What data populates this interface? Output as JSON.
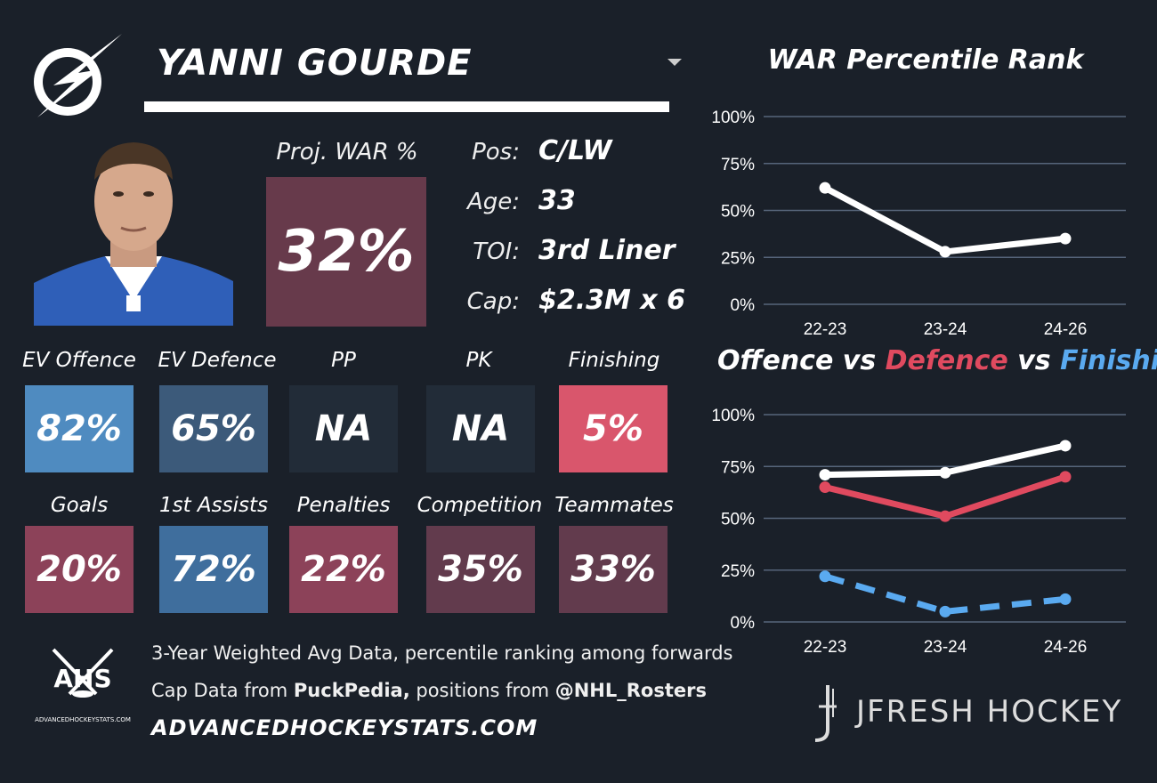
{
  "player": {
    "name": "YANNI GOURDE",
    "proj_war_label": "Proj. WAR %",
    "proj_war_value": "32%",
    "proj_war_color": "#673a4b",
    "info": [
      {
        "key": "Pos:",
        "value": "C/LW"
      },
      {
        "key": "Age:",
        "value": "33"
      },
      {
        "key": "TOI:",
        "value": "3rd Liner"
      },
      {
        "key": "Cap:",
        "value": "$2.3M x 6"
      }
    ]
  },
  "stats_row1": [
    {
      "label": "EV Offence",
      "value": "82%",
      "color": "#4f8bc0"
    },
    {
      "label": "EV Defence",
      "value": "65%",
      "color": "#3c5a7a"
    },
    {
      "label": "PP",
      "value": "NA",
      "color": "#222c38"
    },
    {
      "label": "PK",
      "value": "NA",
      "color": "#222c38"
    },
    {
      "label": "Finishing",
      "value": "5%",
      "color": "#d9566c"
    }
  ],
  "stats_row2": [
    {
      "label": "Goals",
      "value": "20%",
      "color": "#8c4259"
    },
    {
      "label": "1st Assists",
      "value": "72%",
      "color": "#3f6e9d"
    },
    {
      "label": "Penalties",
      "value": "22%",
      "color": "#8c4259"
    },
    {
      "label": "Competition",
      "value": "35%",
      "color": "#623b4d"
    },
    {
      "label": "Teammates",
      "value": "33%",
      "color": "#623b4d"
    }
  ],
  "footer": {
    "logo_text": "AHS",
    "logo_sub": "ADVANCEDHOCKEYSTATS.COM",
    "line1": "3-Year Weighted Avg Data, percentile ranking among forwards",
    "line2_prefix": "Cap Data from ",
    "line2_bold1": "PuckPedia,",
    "line2_mid": " positions from ",
    "line2_bold2": "@NHL_Rosters",
    "site": "ADVANCEDHOCKEYSTATS.COM",
    "brand": "JFRESH HOCKEY"
  },
  "chart_data": [
    {
      "type": "line",
      "title": "WAR Percentile Rank",
      "categories": [
        "22-23",
        "23-24",
        "24-26"
      ],
      "yticks": [
        "100%",
        "75%",
        "50%",
        "25%",
        "0%"
      ],
      "ylim": [
        0,
        100
      ],
      "series": [
        {
          "values": [
            62,
            28,
            35
          ],
          "color": "#ffffff"
        }
      ]
    },
    {
      "type": "line",
      "title_parts": [
        {
          "text": "Offence",
          "color": "#ffffff"
        },
        {
          "text": " vs ",
          "color": "#ffffff"
        },
        {
          "text": "Defence",
          "color": "#e04a5f"
        },
        {
          "text": " vs ",
          "color": "#ffffff"
        },
        {
          "text": "Finishing",
          "color": "#5aaaf0"
        }
      ],
      "categories": [
        "22-23",
        "23-24",
        "24-26"
      ],
      "yticks": [
        "100%",
        "75%",
        "50%",
        "25%",
        "0%"
      ],
      "ylim": [
        0,
        100
      ],
      "series": [
        {
          "values": [
            71,
            72,
            85
          ],
          "color": "#ffffff",
          "dashed": false
        },
        {
          "values": [
            65,
            51,
            70
          ],
          "color": "#e04a5f",
          "dashed": false
        },
        {
          "values": [
            22,
            5,
            11
          ],
          "color": "#5aaaf0",
          "dashed": true
        }
      ]
    }
  ]
}
